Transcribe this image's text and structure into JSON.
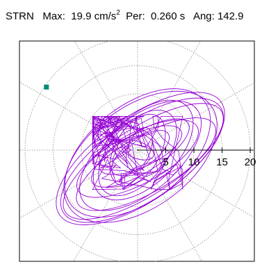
{
  "header": {
    "station": "STRN",
    "max_label": "Max:",
    "max_value": "19.9",
    "max_unit": "cm/s",
    "max_unit_exp": "2",
    "per_label": "Per:",
    "per_value": "0.260 s",
    "ang_label": "Ang:",
    "ang_value": "142.9"
  },
  "chart_data": {
    "type": "scatter",
    "description_kind": "polar particle-motion orbit",
    "radial_ticks": [
      5,
      10,
      15,
      20
    ],
    "radial_tick_labels": [
      "5",
      "10",
      "15",
      "20"
    ],
    "max_radius": 20,
    "ring_radii": [
      5,
      10,
      15,
      20
    ],
    "spoke_angles_deg": [
      0,
      30,
      60,
      90,
      120,
      150,
      180,
      210,
      240,
      270,
      300,
      330
    ],
    "trace_color": "#9400d3",
    "marker_color": "#008b74",
    "marker_point": {
      "x": -16.2,
      "y": 11.2
    },
    "orbits": [
      {
        "rx": 17.5,
        "ry": 7.5,
        "tilt_deg": -35,
        "cx": 0.5,
        "cy": -1.5
      },
      {
        "rx": 16.5,
        "ry": 6.0,
        "tilt_deg": -33,
        "cx": 1.0,
        "cy": -2.0
      },
      {
        "rx": 15.0,
        "ry": 8.5,
        "tilt_deg": -38,
        "cx": 0.0,
        "cy": -0.5
      },
      {
        "rx": 14.0,
        "ry": 5.0,
        "tilt_deg": -30,
        "cx": 1.5,
        "cy": -2.5
      },
      {
        "rx": 13.0,
        "ry": 6.5,
        "tilt_deg": -40,
        "cx": 0.5,
        "cy": -1.0
      },
      {
        "rx": 12.0,
        "ry": 4.5,
        "tilt_deg": -28,
        "cx": 0.0,
        "cy": -1.5
      },
      {
        "rx": 11.0,
        "ry": 6.0,
        "tilt_deg": -45,
        "cx": 1.0,
        "cy": 0.0
      },
      {
        "rx": 10.0,
        "ry": 3.5,
        "tilt_deg": -32,
        "cx": 0.5,
        "cy": -0.5
      },
      {
        "rx": 9.0,
        "ry": 5.0,
        "tilt_deg": -50,
        "cx": 0.0,
        "cy": -0.5
      },
      {
        "rx": 8.0,
        "ry": 3.0,
        "tilt_deg": -25,
        "cx": 0.5,
        "cy": 0.0
      },
      {
        "rx": 7.0,
        "ry": 4.0,
        "tilt_deg": -60,
        "cx": 0.0,
        "cy": 0.0
      },
      {
        "rx": 6.0,
        "ry": 2.5,
        "tilt_deg": -35,
        "cx": 0.5,
        "cy": -0.5
      },
      {
        "rx": 5.0,
        "ry": 3.5,
        "tilt_deg": 40,
        "cx": 0.0,
        "cy": 0.0
      },
      {
        "rx": 4.0,
        "ry": 2.0,
        "tilt_deg": -70,
        "cx": 0.3,
        "cy": 0.2
      },
      {
        "rx": 3.0,
        "ry": 1.5,
        "tilt_deg": 20,
        "cx": 0.0,
        "cy": 0.0
      },
      {
        "rx": 15.5,
        "ry": 9.0,
        "tilt_deg": -36,
        "cx": 0.5,
        "cy": -1.2
      },
      {
        "rx": 16.8,
        "ry": 7.0,
        "tilt_deg": -34,
        "cx": 0.8,
        "cy": -1.8
      }
    ]
  }
}
